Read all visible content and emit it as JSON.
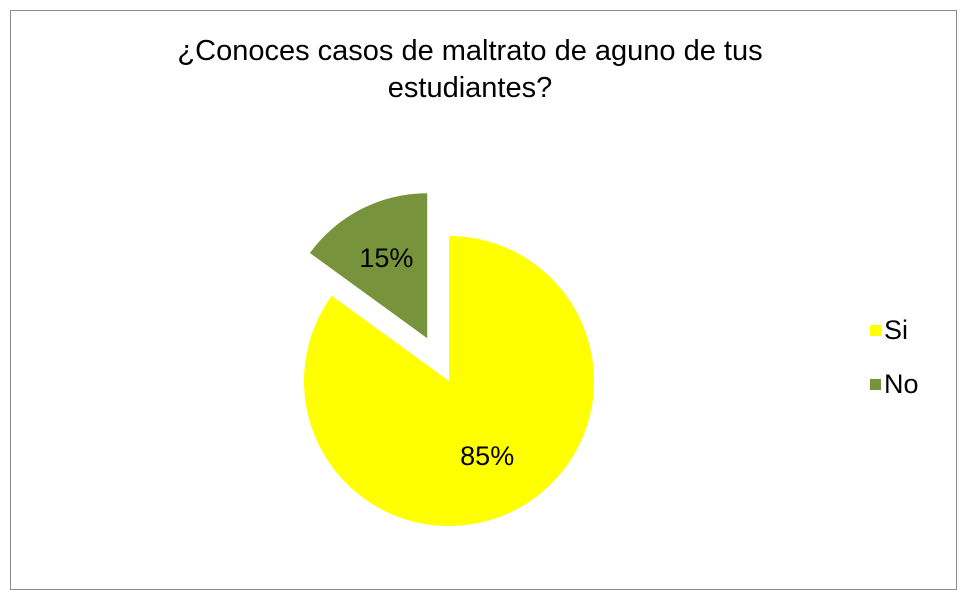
{
  "chart_data": {
    "type": "pie",
    "title_line1": "¿Conoces casos de maltrato de aguno de tus",
    "title_line2": "estudiantes?",
    "slices": [
      {
        "name": "Si",
        "value": 85,
        "label": "85%",
        "color": "#ffff00",
        "exploded": false
      },
      {
        "name": "No",
        "value": 15,
        "label": "15%",
        "color": "#77933c",
        "exploded": true
      }
    ],
    "legend_position": "right"
  }
}
